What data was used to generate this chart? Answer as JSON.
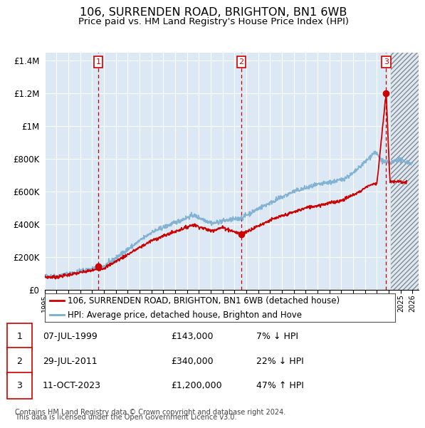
{
  "title": "106, SURRENDEN ROAD, BRIGHTON, BN1 6WB",
  "subtitle": "Price paid vs. HM Land Registry's House Price Index (HPI)",
  "hpi_label": "HPI: Average price, detached house, Brighton and Hove",
  "property_label": "106, SURRENDEN ROAD, BRIGHTON, BN1 6WB (detached house)",
  "footnote1": "Contains HM Land Registry data © Crown copyright and database right 2024.",
  "footnote2": "This data is licensed under the Open Government Licence v3.0.",
  "transactions": [
    {
      "num": 1,
      "date": "07-JUL-1999",
      "date_x": 1999.52,
      "price": 143000,
      "pct": "7%",
      "dir": "↓"
    },
    {
      "num": 2,
      "date": "29-JUL-2011",
      "date_x": 2011.57,
      "price": 340000,
      "pct": "22%",
      "dir": "↓"
    },
    {
      "num": 3,
      "date": "11-OCT-2023",
      "date_x": 2023.78,
      "price": 1200000,
      "pct": "47%",
      "dir": "↑"
    }
  ],
  "ylim": [
    0,
    1450000
  ],
  "xlim_start": 1995.0,
  "xlim_end": 2026.5,
  "future_start": 2024.2,
  "background_color": "#dce9f5",
  "red_color": "#cc0000",
  "blue_color": "#7aadcf",
  "grid_color": "#ffffff",
  "title_fontsize": 11.5,
  "subtitle_fontsize": 9.5,
  "legend_fontsize": 8.5,
  "table_fontsize": 9,
  "footnote_fontsize": 7
}
